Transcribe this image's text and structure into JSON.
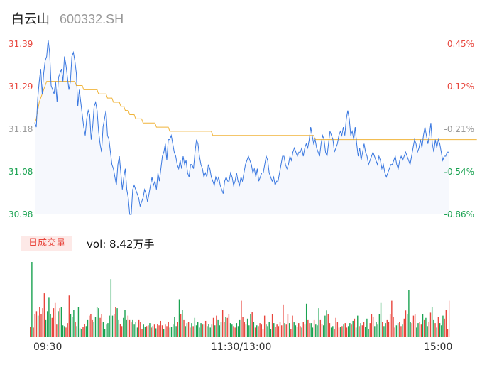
{
  "header": {
    "name": "白云山",
    "code": "600332.SH"
  },
  "indicator": {
    "tag": "日成交量",
    "vol_text": "vol: 8.42万手"
  },
  "colors": {
    "up": "#e8453c",
    "down": "#1aa251",
    "neutral": "#999999",
    "price_line": "#3a78e0",
    "avg_line": "#f0b43a"
  },
  "chart_data": [
    {
      "type": "line",
      "title": "",
      "x_axis": {
        "ticks": [
          "09:30",
          "11:30/13:00",
          "15:00"
        ]
      },
      "y_left": {
        "ticks": [
          "31.39",
          "31.29",
          "31.18",
          "31.08",
          "30.98"
        ],
        "range": [
          30.98,
          31.39
        ]
      },
      "y_right": {
        "ticks": [
          "0.45%",
          "0.12%",
          "-0.21%",
          "-0.54%",
          "-0.86%"
        ]
      },
      "series": [
        {
          "role": "price",
          "values": [
            31.2,
            31.19,
            31.26,
            31.3,
            31.33,
            31.27,
            31.32,
            31.35,
            31.36,
            31.4,
            31.37,
            31.29,
            31.28,
            31.27,
            31.3,
            31.25,
            31.31,
            31.32,
            31.33,
            31.3,
            31.36,
            31.34,
            31.31,
            31.28,
            31.3,
            31.36,
            31.37,
            31.35,
            31.32,
            31.24,
            31.28,
            31.25,
            31.22,
            31.19,
            31.17,
            31.21,
            31.23,
            31.22,
            31.16,
            31.19,
            31.24,
            31.25,
            31.23,
            31.18,
            31.15,
            31.13,
            31.19,
            31.21,
            31.23,
            31.17,
            31.16,
            31.13,
            31.1,
            31.09,
            31.07,
            31.05,
            31.1,
            31.12,
            31.08,
            31.04,
            31.07,
            31.09,
            31.04,
            31.02,
            30.98,
            30.98,
            31.04,
            31.05,
            31.04,
            31.03,
            31.02,
            31.0,
            31.01,
            31.02,
            31.04,
            31.03,
            31.01,
            31.03,
            31.05,
            31.07,
            31.05,
            31.06,
            31.04,
            31.08,
            31.06,
            31.09,
            31.12,
            31.13,
            31.15,
            31.11,
            31.16,
            31.16,
            31.17,
            31.15,
            31.13,
            31.12,
            31.1,
            31.09,
            31.11,
            31.09,
            31.12,
            31.1,
            31.11,
            31.08,
            31.07,
            31.1,
            31.1,
            31.09,
            31.13,
            31.16,
            31.15,
            31.12,
            31.1,
            31.09,
            31.07,
            31.08,
            31.07,
            31.1,
            31.09,
            31.07,
            31.06,
            31.05,
            31.07,
            31.06,
            31.07,
            31.05,
            31.04,
            31.03,
            31.06,
            31.07,
            31.06,
            31.06,
            31.08,
            31.07,
            31.05,
            31.06,
            31.08,
            31.06,
            31.05,
            31.07,
            31.06,
            31.08,
            31.1,
            31.11,
            31.12,
            31.11,
            31.1,
            31.08,
            31.09,
            31.07,
            31.09,
            31.06,
            31.07,
            31.08,
            31.08,
            31.1,
            31.12,
            31.11,
            31.08,
            31.07,
            31.06,
            31.07,
            31.05,
            31.06,
            31.06,
            31.08,
            31.1,
            31.12,
            31.12,
            31.1,
            31.09,
            31.1,
            31.12,
            31.11,
            31.13,
            31.14,
            31.13,
            31.12,
            31.13,
            31.13,
            31.14,
            31.12,
            31.14,
            31.15,
            31.14,
            31.16,
            31.19,
            31.17,
            31.15,
            31.16,
            31.14,
            31.13,
            31.12,
            31.15,
            31.17,
            31.16,
            31.13,
            31.12,
            31.15,
            31.18,
            31.17,
            31.16,
            31.13,
            31.14,
            31.15,
            31.17,
            31.18,
            31.17,
            31.19,
            31.17,
            31.21,
            31.23,
            31.21,
            31.17,
            31.18,
            31.16,
            31.19,
            31.15,
            31.12,
            31.14,
            31.11,
            31.13,
            31.15,
            31.13,
            31.12,
            31.1,
            31.11,
            31.12,
            31.13,
            31.12,
            31.11,
            31.1,
            31.12,
            31.11,
            31.09,
            31.1,
            31.08,
            31.07,
            31.08,
            31.09,
            31.1,
            31.1,
            31.11,
            31.12,
            31.1,
            31.09,
            31.11,
            31.12,
            31.11,
            31.12,
            31.13,
            31.12,
            31.11,
            31.1,
            31.12,
            31.14,
            31.16,
            31.15,
            31.13,
            31.14,
            31.16,
            31.14,
            31.17,
            31.19,
            31.17,
            31.15,
            31.17,
            31.2,
            31.15,
            31.13,
            31.16,
            31.14,
            31.16,
            31.15,
            31.13,
            31.11,
            31.12,
            31.12,
            31.13,
            31.13
          ]
        },
        {
          "role": "average",
          "values": [
            31.2,
            31.21,
            31.23,
            31.25,
            31.26,
            31.27,
            31.28,
            31.29,
            31.3,
            31.3,
            31.3,
            31.3,
            31.3,
            31.3,
            31.3,
            31.3,
            31.3,
            31.3,
            31.3,
            31.3,
            31.3,
            31.3,
            31.3,
            31.3,
            31.3,
            31.3,
            31.3,
            31.3,
            31.29,
            31.29,
            31.29,
            31.29,
            31.29,
            31.28,
            31.28,
            31.28,
            31.28,
            31.28,
            31.28,
            31.28,
            31.28,
            31.28,
            31.28,
            31.27,
            31.27,
            31.27,
            31.27,
            31.27,
            31.27,
            31.26,
            31.26,
            31.26,
            31.26,
            31.25,
            31.25,
            31.25,
            31.25,
            31.25,
            31.24,
            31.24,
            31.24,
            31.23,
            31.23,
            31.23,
            31.22,
            31.22,
            31.22,
            31.22,
            31.21,
            31.21,
            31.21,
            31.21,
            31.21,
            31.2,
            31.2,
            31.2,
            31.2,
            31.2,
            31.2,
            31.2,
            31.2,
            31.2,
            31.19,
            31.19,
            31.19,
            31.19,
            31.19,
            31.19,
            31.19,
            31.19,
            31.19,
            31.18,
            31.18,
            31.18,
            31.18,
            31.18,
            31.18,
            31.18,
            31.18,
            31.18,
            31.18,
            31.18,
            31.18,
            31.18,
            31.18,
            31.18,
            31.18,
            31.18,
            31.18,
            31.18,
            31.18,
            31.18,
            31.18,
            31.18,
            31.18,
            31.18,
            31.18,
            31.18,
            31.18,
            31.18,
            31.17,
            31.17,
            31.17,
            31.17,
            31.17,
            31.17,
            31.17,
            31.17,
            31.17,
            31.17,
            31.17,
            31.17,
            31.17,
            31.17,
            31.17,
            31.17,
            31.17,
            31.17,
            31.17,
            31.17,
            31.17,
            31.17,
            31.17,
            31.17,
            31.17,
            31.17,
            31.17,
            31.17,
            31.17,
            31.17,
            31.17,
            31.17,
            31.17,
            31.17,
            31.17,
            31.17,
            31.17,
            31.17,
            31.17,
            31.17,
            31.17,
            31.17,
            31.17,
            31.17,
            31.17,
            31.17,
            31.17,
            31.17,
            31.17,
            31.17,
            31.17,
            31.17,
            31.17,
            31.17,
            31.17,
            31.17,
            31.17,
            31.17,
            31.17,
            31.17,
            31.17,
            31.17,
            31.17,
            31.17,
            31.17,
            31.17,
            31.17,
            31.17,
            31.17,
            31.16,
            31.16,
            31.16,
            31.16,
            31.16,
            31.16,
            31.16,
            31.16,
            31.16,
            31.16,
            31.16,
            31.16,
            31.16,
            31.16,
            31.16,
            31.16,
            31.16,
            31.16,
            31.16,
            31.16,
            31.16,
            31.16,
            31.16,
            31.16,
            31.16,
            31.16,
            31.16,
            31.16,
            31.16,
            31.16,
            31.16,
            31.16,
            31.16,
            31.16,
            31.16,
            31.16,
            31.16,
            31.16,
            31.16,
            31.16,
            31.16,
            31.16,
            31.16,
            31.16,
            31.16,
            31.16,
            31.16,
            31.16,
            31.16,
            31.16,
            31.16,
            31.16,
            31.16,
            31.16,
            31.16,
            31.16,
            31.16,
            31.16,
            31.16,
            31.16,
            31.16,
            31.16,
            31.16,
            31.16,
            31.16,
            31.16,
            31.16,
            31.16,
            31.16,
            31.16,
            31.16,
            31.16,
            31.16,
            31.16,
            31.16,
            31.16,
            31.16,
            31.16,
            31.16,
            31.16,
            31.16,
            31.16,
            31.16,
            31.16,
            31.16,
            31.16,
            31.16,
            31.16,
            31.16,
            31.16,
            31.16,
            31.16,
            31.16,
            31.16,
            31.16,
            31.16,
            31.16,
            31.16,
            31.16,
            31.16,
            31.16,
            31.16,
            31.16,
            31.16,
            31.16,
            31.16,
            31.16,
            31.16,
            31.16,
            31.16
          ]
        }
      ]
    },
    {
      "type": "bar",
      "title": "日成交量",
      "series": [
        {
          "role": "volume",
          "values": [
            13,
            100,
            12,
            30,
            34,
            28,
            40,
            30,
            38,
            58,
            22,
            34,
            52,
            30,
            25,
            38,
            45,
            16,
            34,
            38,
            40,
            15,
            14,
            12,
            18,
            55,
            30,
            26,
            36,
            20,
            14,
            40,
            11,
            10,
            13,
            17,
            14,
            22,
            28,
            30,
            22,
            20,
            26,
            40,
            38,
            25,
            30,
            20,
            10,
            16,
            18,
            28,
            77,
            28,
            30,
            40,
            38,
            22,
            17,
            14,
            25,
            36,
            22,
            28,
            22,
            19,
            22,
            16,
            20,
            12,
            22,
            20,
            10,
            16,
            13,
            14,
            15,
            18,
            12,
            14,
            16,
            11,
            17,
            15,
            21,
            15,
            10,
            16,
            14,
            20,
            12,
            13,
            16,
            26,
            14,
            20,
            50,
            30,
            36,
            22,
            14,
            18,
            20,
            12,
            18,
            14,
            25,
            15,
            20,
            12,
            18,
            16,
            16,
            21,
            14,
            17,
            12,
            16,
            25,
            15,
            28,
            22,
            15,
            20,
            36,
            20,
            26,
            25,
            30,
            18,
            16,
            14,
            12,
            18,
            14,
            22,
            48,
            26,
            20,
            16,
            24,
            15,
            30,
            33,
            20,
            12,
            15,
            14,
            18,
            16,
            10,
            28,
            16,
            14,
            20,
            10,
            30,
            18,
            13,
            16,
            14,
            20,
            15,
            43,
            18,
            16,
            30,
            18,
            10,
            28,
            19,
            15,
            13,
            18,
            14,
            12,
            20,
            16,
            44,
            22,
            18,
            18,
            12,
            22,
            16,
            15,
            38,
            22,
            17,
            15,
            28,
            35,
            30,
            18,
            12,
            14,
            10,
            25,
            20,
            12,
            13,
            14,
            16,
            18,
            12,
            14,
            18,
            16,
            21,
            24,
            12,
            28,
            14,
            18,
            15,
            20,
            13,
            24,
            10,
            18,
            30,
            26,
            14,
            20,
            16,
            30,
            45,
            20,
            14,
            18,
            22,
            20,
            30,
            48,
            26,
            12,
            15,
            18,
            20,
            14,
            16,
            24,
            35,
            30,
            62,
            20,
            18,
            28,
            30,
            12,
            18,
            20,
            16,
            30,
            22,
            25,
            14,
            20,
            32,
            40,
            22,
            18,
            12,
            26,
            18,
            15,
            28,
            24,
            36,
            10,
            48
          ]
        }
      ]
    }
  ]
}
